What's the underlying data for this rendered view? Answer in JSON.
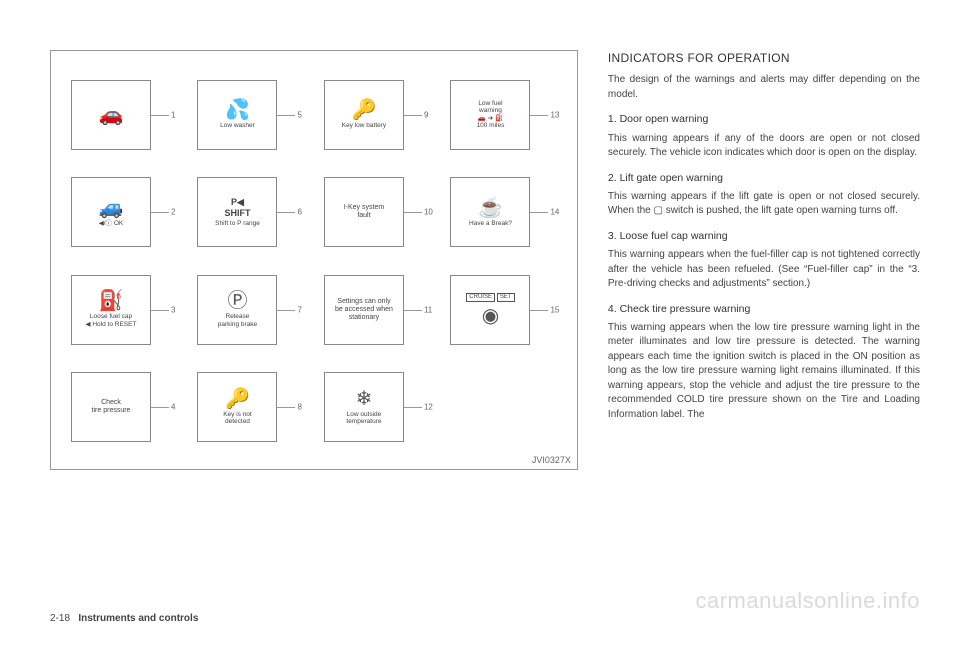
{
  "diagram": {
    "id": "JVI0327X",
    "tiles": [
      {
        "n": 1,
        "icon": "door-open-icon",
        "glyph": "🚗",
        "label": ""
      },
      {
        "n": 5,
        "icon": "washer-icon",
        "glyph": "💦",
        "label": "Low washer"
      },
      {
        "n": 9,
        "icon": "key-battery-icon",
        "glyph": "🔑",
        "label": "Key low battery"
      },
      {
        "n": 13,
        "icon": "fuel-icon",
        "glyph": "⛽",
        "label": "Low fuel\nwarning\n🚗 ➔ ⛽\n100 miles",
        "multiline": true,
        "topLabel": true
      },
      {
        "n": 2,
        "icon": "liftgate-icon",
        "glyph": "🚙",
        "label": "◀/ⓘ OK",
        "labelBottom": true
      },
      {
        "n": 6,
        "icon": "shift-icon",
        "glyph": "P◀\nSHIFT",
        "label": "Shift to P range",
        "textIcon": true
      },
      {
        "n": 10,
        "icon": "ikey-fault-icon",
        "glyph": "",
        "label": "I-Key system\nfault",
        "centerText": true
      },
      {
        "n": 14,
        "icon": "break-icon",
        "glyph": "☕",
        "label": "Have a Break?"
      },
      {
        "n": 3,
        "icon": "fuel-cap-icon",
        "glyph": "⛽",
        "label": "Loose fuel cap\n◀ Hold to RESET",
        "multiline": true
      },
      {
        "n": 7,
        "icon": "parking-icon",
        "glyph": "Ⓟ",
        "label": "Release\nparking brake"
      },
      {
        "n": 11,
        "icon": "settings-icon",
        "glyph": "",
        "label": "Settings can only\nbe accessed when\nstationary",
        "centerText": true
      },
      {
        "n": 15,
        "icon": "cruise-icon",
        "glyph": "◉",
        "label": "",
        "cruise": true
      },
      {
        "n": 4,
        "icon": "tire-icon",
        "glyph": "",
        "label": "Check\ntire pressure",
        "centerText": true
      },
      {
        "n": 8,
        "icon": "no-key-icon",
        "glyph": "🔑",
        "label": "Key is not\ndetected"
      },
      {
        "n": 12,
        "icon": "snow-icon",
        "glyph": "❄",
        "label": "Low outside\ntemperature"
      }
    ]
  },
  "text": {
    "heading": "INDICATORS FOR OPERATION",
    "intro": "The design of the warnings and alerts may differ depending on the model.",
    "sections": [
      {
        "title": "1. Door open warning",
        "body": "This warning appears if any of the doors are open or not closed securely. The vehicle icon indicates which door is open on the display."
      },
      {
        "title": "2. Lift gate open warning",
        "body": "This warning appears if the lift gate is open or not closed securely. When the  ▢  switch is pushed, the lift gate open warning turns off."
      },
      {
        "title": "3. Loose fuel cap warning",
        "body": "This warning appears when the fuel-filler cap is not tightened correctly after the vehicle has been refueled. (See “Fuel-filler cap” in the “3. Pre-driving checks and adjustments” section.)"
      },
      {
        "title": "4. Check tire pressure warning",
        "body": "This warning appears when the low tire pressure warning light in the meter illuminates and low tire pressure is detected. The warning appears each time the ignition switch is placed in the ON position as long as the low tire pressure warning light remains illuminated. If this warning appears, stop the vehicle and adjust the tire pressure to the recommended COLD tire pressure shown on the Tire and Loading Information label. The"
      }
    ]
  },
  "footer": {
    "pageNum": "2-18",
    "section": "Instruments and controls"
  },
  "watermark": "carmanualsonline.info"
}
